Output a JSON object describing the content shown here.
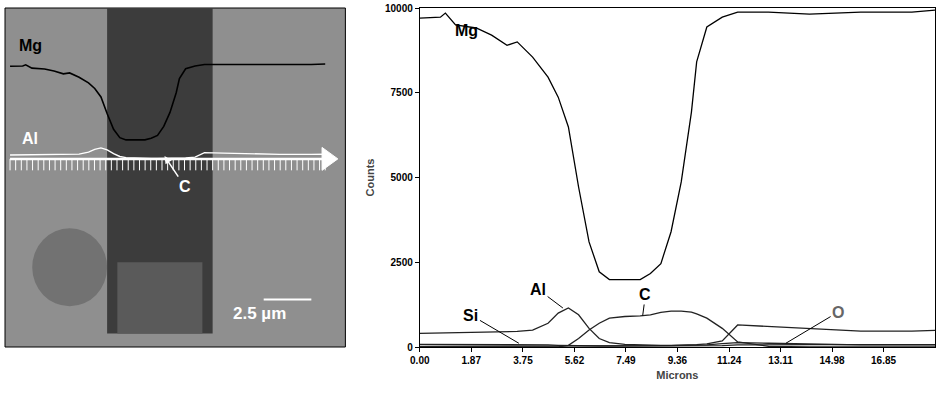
{
  "chart_data": {
    "type": "line",
    "x": [
      0,
      0.75,
      0.93,
      1.3,
      2.05,
      2.61,
      3.17,
      3.54,
      4.1,
      4.66,
      5.03,
      5.4,
      5.77,
      6.15,
      6.52,
      6.89,
      7.45,
      8.01,
      8.38,
      8.76,
      9.13,
      9.5,
      9.87,
      10.06,
      10.43,
      10.99,
      11.55,
      12.67,
      14.16,
      16.02,
      17.88,
      18.72
    ],
    "xlim": [
      0,
      18.72
    ],
    "xticks": [
      {
        "value": 0,
        "label": "0.00"
      },
      1.87,
      3.75,
      5.62,
      7.49,
      9.36,
      11.24,
      13.11,
      14.98,
      16.85
    ],
    "ylim": [
      0,
      10000
    ],
    "yticks": [
      0,
      2500,
      5000,
      7500,
      10000
    ],
    "xlabel": "Microns",
    "ylabel": "Counts",
    "grid": false,
    "series": [
      {
        "name": "Mg",
        "color": "#000000",
        "values": [
          9700,
          9730,
          9850,
          9500,
          9410,
          9200,
          8900,
          9000,
          8550,
          7960,
          7370,
          6490,
          4720,
          3100,
          2220,
          1990,
          1990,
          1990,
          2170,
          2460,
          3400,
          4870,
          6930,
          8410,
          9440,
          9730,
          9880,
          9880,
          9820,
          9880,
          9880,
          9940
        ]
      },
      {
        "name": "Al",
        "color": "#222222",
        "values": [
          400,
          410,
          410,
          420,
          430,
          440,
          450,
          460,
          500,
          700,
          1000,
          1150,
          950,
          550,
          250,
          130,
          80,
          60,
          55,
          50,
          50,
          50,
          60,
          70,
          90,
          180,
          650,
          600,
          540,
          470,
          470,
          490
        ]
      },
      {
        "name": "C",
        "color": "#222222",
        "values": [
          0,
          0,
          0,
          0,
          0,
          0,
          0,
          0,
          0,
          0,
          0,
          50,
          250,
          500,
          700,
          850,
          900,
          920,
          950,
          1020,
          1060,
          1060,
          1030,
          980,
          850,
          550,
          150,
          20,
          0,
          0,
          0,
          0
        ]
      },
      {
        "name": "Si",
        "color": "#222222",
        "values": [
          80,
          80,
          80,
          80,
          80,
          80,
          80,
          80,
          70,
          60,
          50,
          40,
          30,
          30,
          30,
          30,
          30,
          30,
          30,
          30,
          30,
          30,
          30,
          30,
          30,
          40,
          60,
          70,
          70,
          70,
          70,
          70
        ]
      },
      {
        "name": "O",
        "color": "#222222",
        "values": [
          20,
          20,
          20,
          20,
          20,
          20,
          20,
          20,
          20,
          20,
          20,
          30,
          40,
          40,
          40,
          40,
          40,
          40,
          40,
          40,
          40,
          50,
          50,
          55,
          60,
          100,
          130,
          110,
          80,
          60,
          60,
          60
        ]
      }
    ]
  },
  "micrograph": {
    "scale_bar": "2.5 µm"
  }
}
